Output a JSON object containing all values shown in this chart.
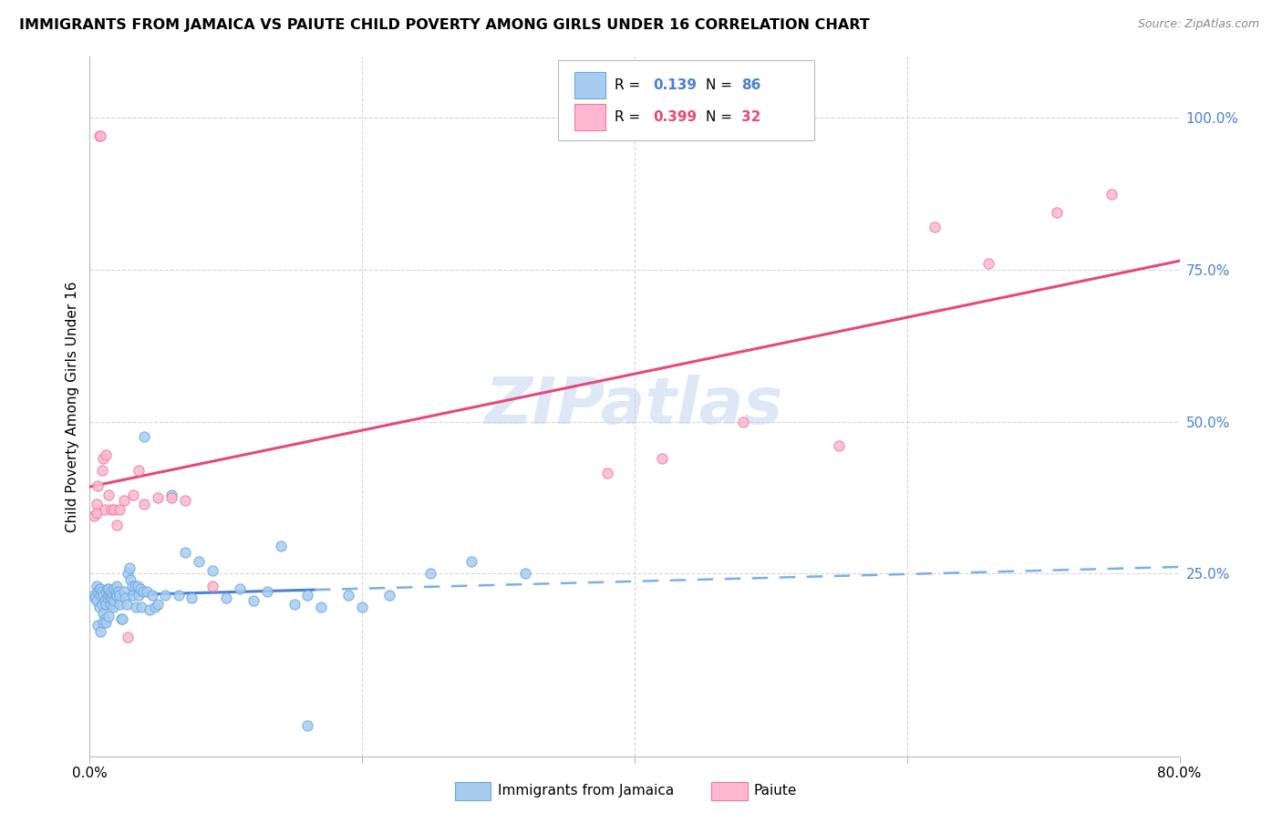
{
  "title": "IMMIGRANTS FROM JAMAICA VS PAIUTE CHILD POVERTY AMONG GIRLS UNDER 16 CORRELATION CHART",
  "source": "Source: ZipAtlas.com",
  "ylabel": "Child Poverty Among Girls Under 16",
  "xlim": [
    0.0,
    0.8
  ],
  "ylim": [
    -0.05,
    1.1
  ],
  "ytick_labels": [
    "100.0%",
    "75.0%",
    "50.0%",
    "25.0%"
  ],
  "ytick_positions": [
    1.0,
    0.75,
    0.5,
    0.25
  ],
  "xtick_positions": [
    0.0,
    0.2,
    0.4,
    0.6,
    0.8
  ],
  "xtick_labels": [
    "0.0%",
    "",
    "",
    "",
    "80.0%"
  ],
  "jamaica_color": "#a8ccf0",
  "paiute_color": "#ffb8d0",
  "jamaica_edge": "#6aaade",
  "paiute_edge": "#f07898",
  "trendline_jamaica_solid_color": "#4a80d0",
  "trendline_jamaica_dash_color": "#7ab0e8",
  "trendline_paiute_color": "#e84878",
  "watermark": "ZIPatlas",
  "watermark_color": "#c8d8f0",
  "r1": "0.139",
  "n1": "86",
  "r2": "0.399",
  "n2": "32",
  "r1_color": "#4a80d0",
  "n1_color": "#4a80d0",
  "r2_color": "#e84878",
  "n2_color": "#e84878",
  "legend_label1": "Immigrants from Jamaica",
  "legend_label2": "Paiute",
  "jamaica_x": [
    0.003,
    0.004,
    0.005,
    0.005,
    0.006,
    0.007,
    0.007,
    0.008,
    0.008,
    0.009,
    0.009,
    0.01,
    0.01,
    0.011,
    0.011,
    0.012,
    0.012,
    0.013,
    0.013,
    0.014,
    0.014,
    0.015,
    0.015,
    0.016,
    0.016,
    0.017,
    0.017,
    0.018,
    0.018,
    0.019,
    0.019,
    0.02,
    0.02,
    0.021,
    0.022,
    0.022,
    0.023,
    0.024,
    0.025,
    0.026,
    0.027,
    0.028,
    0.029,
    0.03,
    0.031,
    0.032,
    0.033,
    0.034,
    0.035,
    0.036,
    0.037,
    0.038,
    0.039,
    0.04,
    0.042,
    0.044,
    0.046,
    0.048,
    0.05,
    0.055,
    0.06,
    0.065,
    0.07,
    0.075,
    0.08,
    0.09,
    0.1,
    0.11,
    0.12,
    0.13,
    0.14,
    0.15,
    0.16,
    0.17,
    0.19,
    0.2,
    0.22,
    0.25,
    0.28,
    0.32,
    0.006,
    0.008,
    0.01,
    0.012,
    0.014,
    0.16
  ],
  "jamaica_y": [
    0.215,
    0.21,
    0.205,
    0.23,
    0.22,
    0.195,
    0.225,
    0.215,
    0.225,
    0.2,
    0.22,
    0.185,
    0.215,
    0.175,
    0.205,
    0.2,
    0.22,
    0.21,
    0.225,
    0.215,
    0.225,
    0.2,
    0.215,
    0.21,
    0.22,
    0.195,
    0.215,
    0.205,
    0.225,
    0.215,
    0.22,
    0.215,
    0.23,
    0.22,
    0.2,
    0.215,
    0.175,
    0.175,
    0.22,
    0.21,
    0.2,
    0.25,
    0.26,
    0.24,
    0.23,
    0.215,
    0.23,
    0.195,
    0.23,
    0.215,
    0.225,
    0.195,
    0.22,
    0.475,
    0.22,
    0.19,
    0.215,
    0.195,
    0.2,
    0.215,
    0.38,
    0.215,
    0.285,
    0.21,
    0.27,
    0.255,
    0.21,
    0.225,
    0.205,
    0.22,
    0.295,
    0.2,
    0.215,
    0.195,
    0.215,
    0.195,
    0.215,
    0.25,
    0.27,
    0.25,
    0.165,
    0.155,
    0.17,
    0.17,
    0.18,
    0.0
  ],
  "paiute_x": [
    0.003,
    0.005,
    0.005,
    0.006,
    0.007,
    0.008,
    0.009,
    0.01,
    0.011,
    0.012,
    0.014,
    0.016,
    0.018,
    0.02,
    0.022,
    0.025,
    0.028,
    0.032,
    0.036,
    0.04,
    0.05,
    0.06,
    0.07,
    0.09,
    0.38,
    0.42,
    0.48,
    0.55,
    0.62,
    0.66,
    0.71,
    0.75
  ],
  "paiute_y": [
    0.345,
    0.365,
    0.35,
    0.395,
    0.97,
    0.97,
    0.42,
    0.44,
    0.355,
    0.445,
    0.38,
    0.355,
    0.355,
    0.33,
    0.355,
    0.37,
    0.145,
    0.38,
    0.42,
    0.365,
    0.375,
    0.375,
    0.37,
    0.23,
    0.415,
    0.44,
    0.5,
    0.46,
    0.82,
    0.76,
    0.845,
    0.875
  ]
}
